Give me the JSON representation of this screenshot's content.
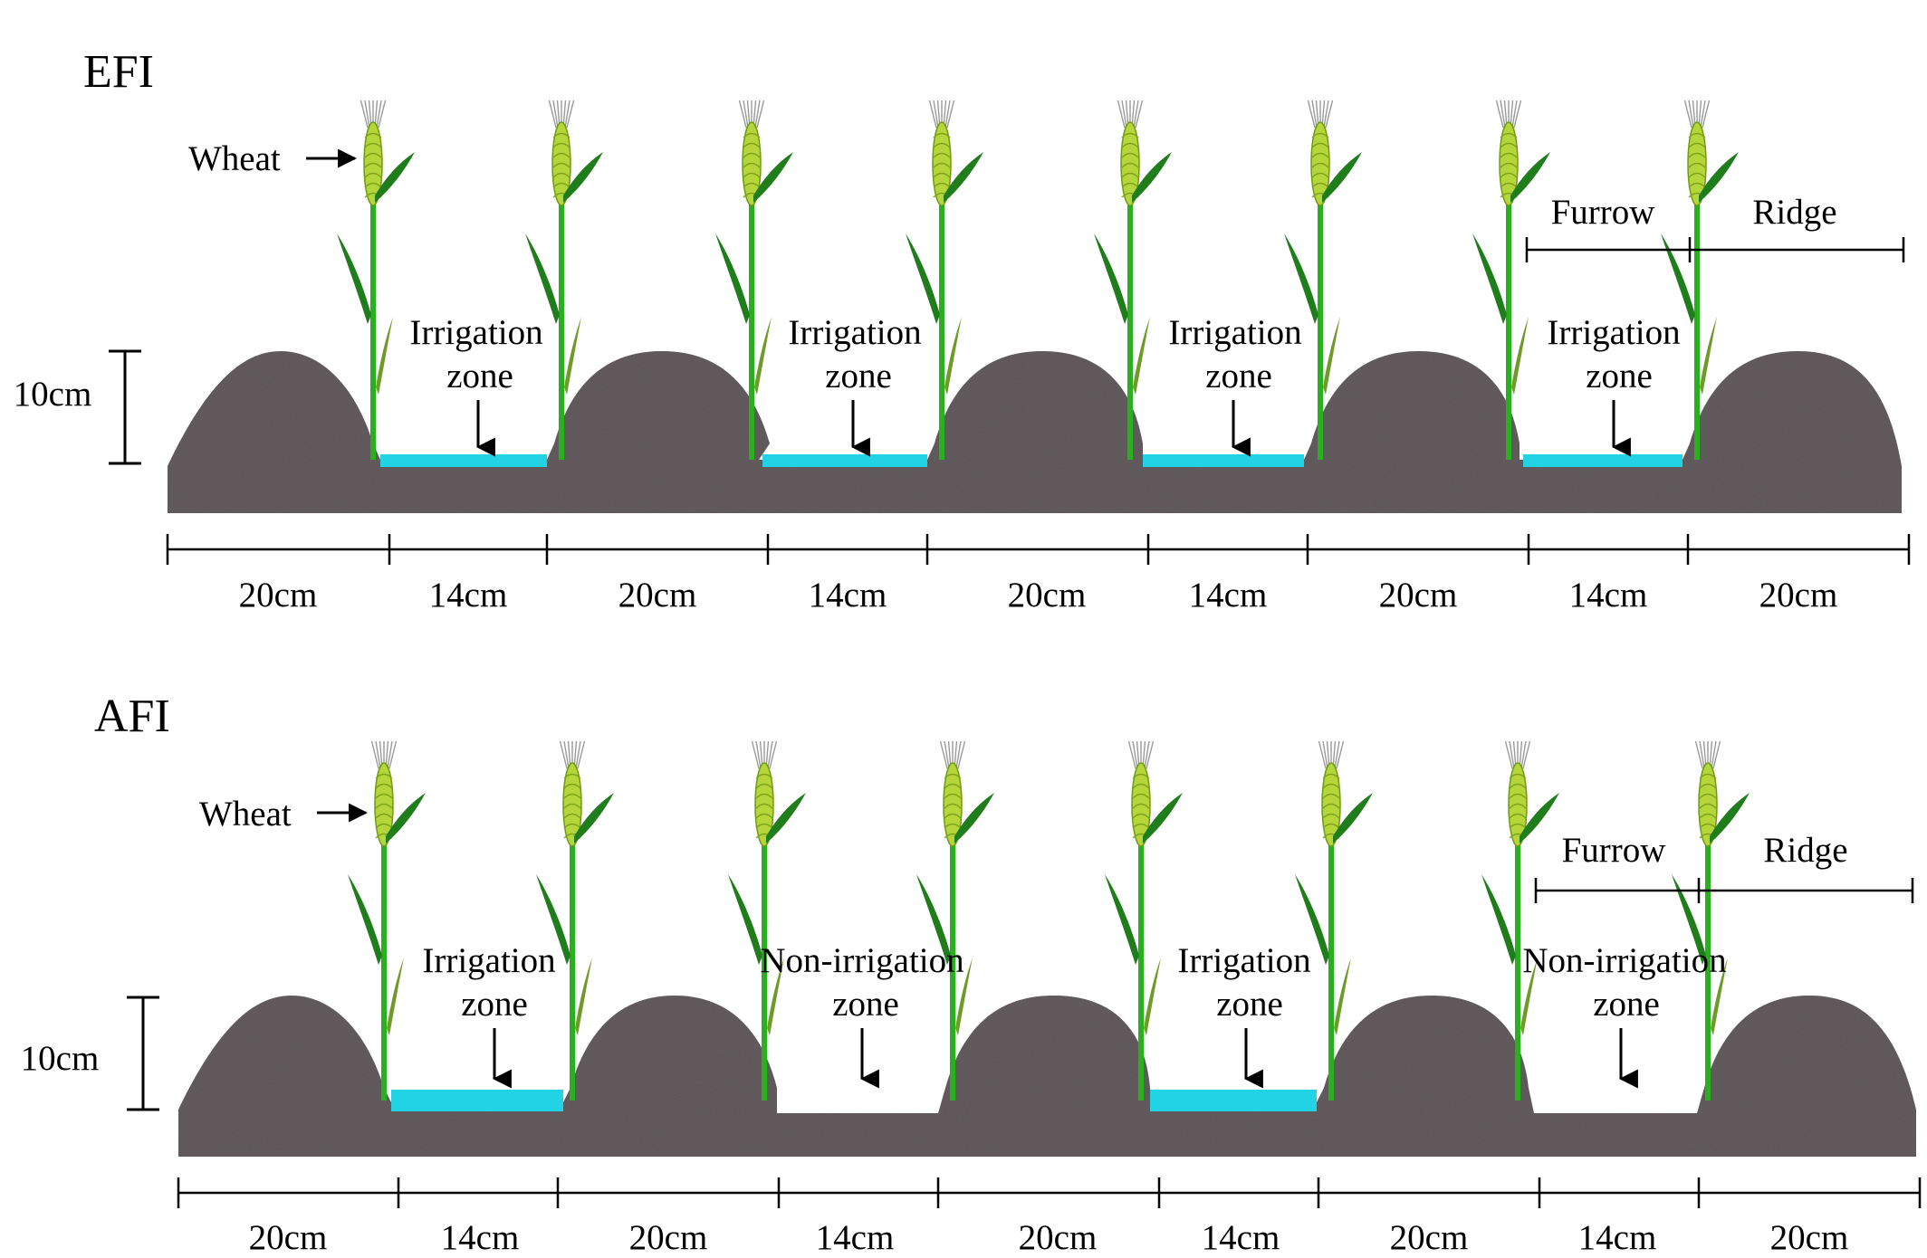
{
  "panels": [
    {
      "id": "efi",
      "title": "EFI",
      "wheat_label": "Wheat",
      "height_label": "10cm",
      "furrow_label": "Furrow",
      "ridge_label": "Ridge",
      "zones": [
        {
          "line1": "Irrigation",
          "line2": "zone",
          "irrigated": true
        },
        {
          "line1": "Irrigation",
          "line2": "zone",
          "irrigated": true
        },
        {
          "line1": "Irrigation",
          "line2": "zone",
          "irrigated": true
        },
        {
          "line1": "Irrigation",
          "line2": "zone",
          "irrigated": true
        }
      ],
      "widths": [
        "20cm",
        "14cm",
        "20cm",
        "14cm",
        "20cm",
        "14cm",
        "20cm",
        "14cm",
        "20cm"
      ]
    },
    {
      "id": "afi",
      "title": "AFI",
      "wheat_label": "Wheat",
      "height_label": "10cm",
      "furrow_label": "Furrow",
      "ridge_label": "Ridge",
      "zones": [
        {
          "line1": "Irrigation",
          "line2": "zone",
          "irrigated": true
        },
        {
          "line1": "Non-irrigation",
          "line2": "zone",
          "irrigated": false
        },
        {
          "line1": "Irrigation",
          "line2": "zone",
          "irrigated": true
        },
        {
          "line1": "Non-irrigation",
          "line2": "zone",
          "irrigated": false
        }
      ],
      "widths": [
        "20cm",
        "14cm",
        "20cm",
        "14cm",
        "20cm",
        "14cm",
        "20cm",
        "14cm",
        "20cm"
      ]
    }
  ],
  "colors": {
    "soil": "#5b5556",
    "water": "#22d3e6",
    "stem": "#28b01e",
    "leaf": "#1f7d1c",
    "spike": "#b5d63a"
  }
}
